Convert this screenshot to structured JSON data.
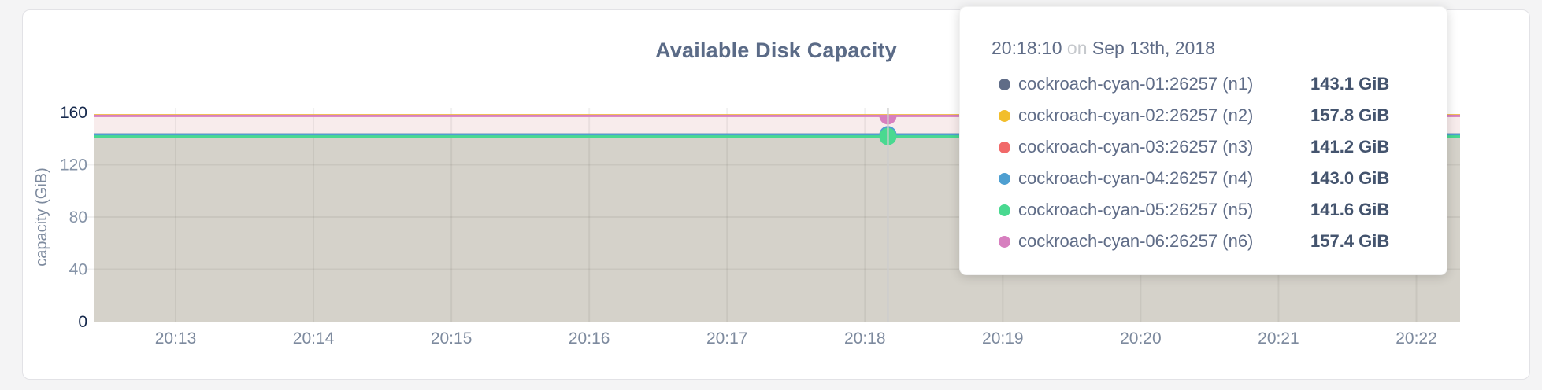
{
  "card": {
    "title": "Available Disk Capacity"
  },
  "tooltip": {
    "time": "20:18:10",
    "connector": "on",
    "date": "Sep 13th, 2018",
    "rows": [
      {
        "id": "n1",
        "name": "cockroach-cyan-01:26257 (n1)",
        "value": "143.1 GiB",
        "color": "#5F6C87"
      },
      {
        "id": "n2",
        "name": "cockroach-cyan-02:26257 (n2)",
        "value": "157.8 GiB",
        "color": "#F2BE2C"
      },
      {
        "id": "n3",
        "name": "cockroach-cyan-03:26257 (n3)",
        "value": "141.2 GiB",
        "color": "#F16969"
      },
      {
        "id": "n4",
        "name": "cockroach-cyan-04:26257 (n4)",
        "value": "143.0 GiB",
        "color": "#4E9FD1"
      },
      {
        "id": "n5",
        "name": "cockroach-cyan-05:26257 (n5)",
        "value": "141.6 GiB",
        "color": "#49D990"
      },
      {
        "id": "n6",
        "name": "cockroach-cyan-06:26257 (n6)",
        "value": "157.4 GiB",
        "color": "#D77FBF"
      }
    ]
  },
  "chart_data": {
    "type": "area",
    "title": "Available Disk Capacity",
    "xlabel": "",
    "ylabel": "capacity (GiB)",
    "ylim": [
      0,
      160
    ],
    "yticks": [
      0,
      40,
      80,
      120,
      160
    ],
    "ytick_minmax_color": "#16294d",
    "ytick_mid_color": "#8593a7",
    "xticks": [
      "20:13",
      "20:14",
      "20:15",
      "20:16",
      "20:17",
      "20:18",
      "20:19",
      "20:20",
      "20:21",
      "20:22"
    ],
    "xtick_color": "#7d8a9e",
    "grid": true,
    "grid_color": "rgba(0,0,0,0.055)",
    "crosshair_color": "#cdcdcd",
    "legend_position": "tooltip",
    "series": [
      {
        "id": "n1",
        "name": "cockroach-cyan-01:26257 (n1)",
        "color": "#5F6C87",
        "value_gib": 143.1
      },
      {
        "id": "n2",
        "name": "cockroach-cyan-02:26257 (n2)",
        "color": "#F2BE2C",
        "value_gib": 157.8
      },
      {
        "id": "n3",
        "name": "cockroach-cyan-03:26257 (n3)",
        "color": "#F16969",
        "value_gib": 141.2
      },
      {
        "id": "n4",
        "name": "cockroach-cyan-04:26257 (n4)",
        "color": "#4E9FD1",
        "value_gib": 143.0
      },
      {
        "id": "n5",
        "name": "cockroach-cyan-05:26257 (n5)",
        "color": "#49D990",
        "value_gib": 141.6
      },
      {
        "id": "n6",
        "name": "cockroach-cyan-06:26257 (n6)",
        "color": "#D77FBF",
        "value_gib": 157.4
      }
    ],
    "draw_order": [
      "n1",
      "n4",
      "n3",
      "n5",
      "n2",
      "n6"
    ],
    "fills": [
      {
        "from_gib": 157.4,
        "to_gib": 143.0,
        "color": "#f8ecec"
      },
      {
        "from_gib": 141.2,
        "to_gib": 0,
        "color": "#d5d2ca"
      }
    ],
    "hover": {
      "time": "20:18:10",
      "first_tick": "20:13",
      "markers": [
        {
          "series": "n4",
          "shape": "circle"
        },
        {
          "series": "n5",
          "shape": "circle"
        },
        {
          "series": "n6",
          "shape": "semicircle"
        }
      ]
    }
  }
}
